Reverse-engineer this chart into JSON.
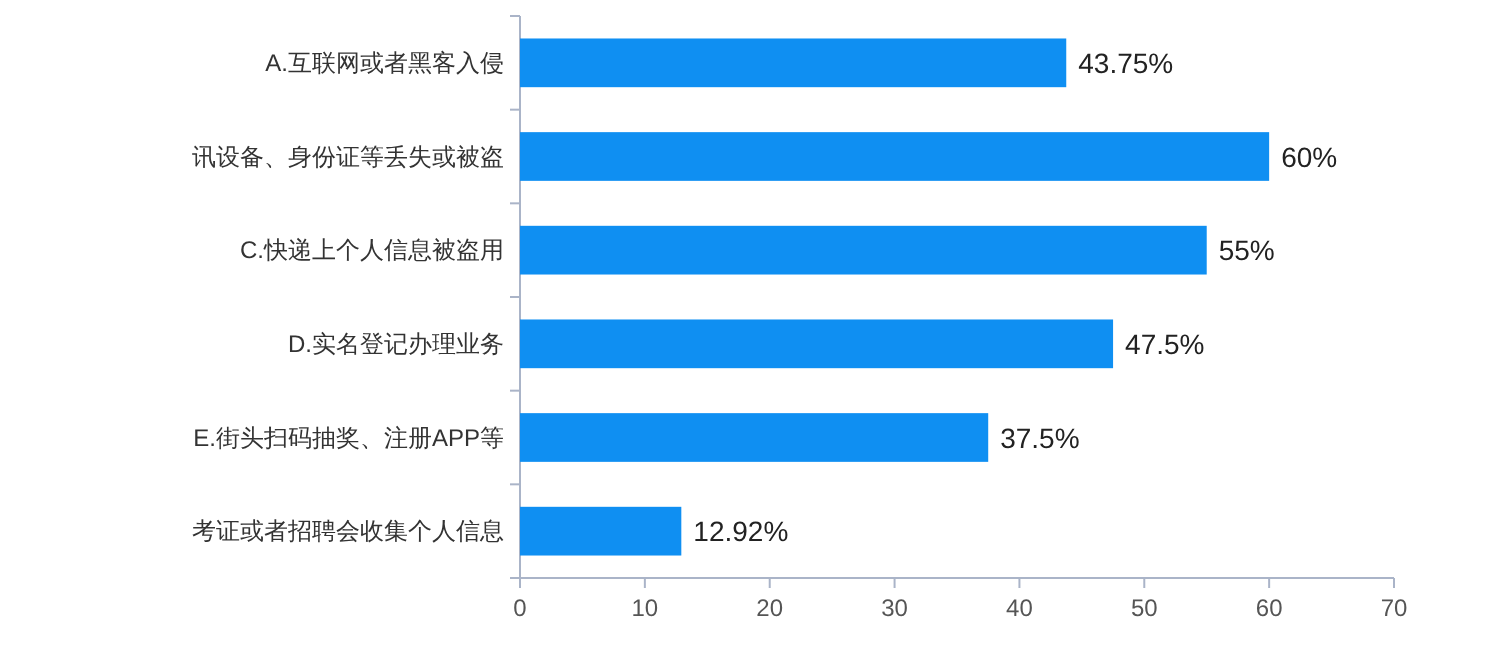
{
  "chart_data": {
    "type": "bar",
    "orientation": "horizontal",
    "categories": [
      "A.互联网或者黑客入侵",
      "讯设备、身份证等丢失或被盗",
      "C.快递上个人信息被盗用",
      "D.实名登记办理业务",
      "E.街头扫码抽奖、注册APP等",
      "考证或者招聘会收集个人信息"
    ],
    "values": [
      43.75,
      60,
      55,
      47.5,
      37.5,
      12.92
    ],
    "value_labels": [
      "43.75%",
      "60%",
      "55%",
      "47.5%",
      "37.5%",
      "12.92%"
    ],
    "color": "#0f8ff2",
    "xlim": [
      0,
      70
    ],
    "xticks": [
      0,
      10,
      20,
      30,
      40,
      50,
      60,
      70
    ]
  }
}
